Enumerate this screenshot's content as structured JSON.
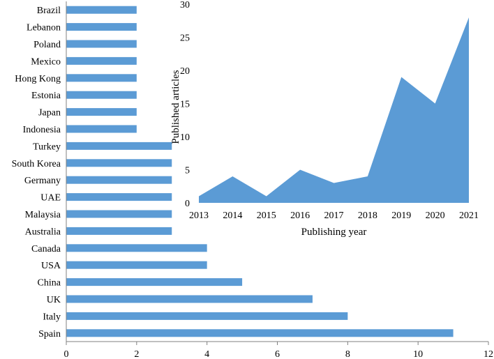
{
  "colors": {
    "bar": "#5B9BD5",
    "area": "#5B9BD5",
    "axis": "#808080",
    "text": "#000000"
  },
  "chart_data": [
    {
      "type": "bar",
      "orientation": "horizontal",
      "categories": [
        "Brazil",
        "Lebanon",
        "Poland",
        "Mexico",
        "Hong Kong",
        "Estonia",
        "Japan",
        "Indonesia",
        "Turkey",
        "South Korea",
        "Germany",
        "UAE",
        "Malaysia",
        "Australia",
        "Canada",
        "USA",
        "China",
        "UK",
        "Italy",
        "Spain"
      ],
      "values": [
        2,
        2,
        2,
        2,
        2,
        2,
        2,
        2,
        3,
        3,
        3,
        3,
        3,
        3,
        4,
        4,
        5,
        7,
        8,
        11
      ],
      "x_ticks": [
        "0",
        "2",
        "4",
        "6",
        "8",
        "10",
        "12"
      ],
      "xlim": [
        0,
        12
      ],
      "grid": false,
      "legend": "none",
      "title": "",
      "xlabel": "",
      "ylabel": ""
    },
    {
      "type": "area",
      "x": [
        "2013",
        "2014",
        "2015",
        "2016",
        "2017",
        "2018",
        "2019",
        "2020",
        "2021"
      ],
      "values": [
        1,
        4,
        1,
        5,
        3,
        4,
        19,
        15,
        28
      ],
      "y_ticks": [
        "0",
        "5",
        "10",
        "15",
        "20",
        "25",
        "30"
      ],
      "ylim": [
        0,
        30
      ],
      "xlabel": "Publishing year",
      "ylabel": "Published articles",
      "grid": false,
      "legend": "none",
      "title": ""
    }
  ]
}
